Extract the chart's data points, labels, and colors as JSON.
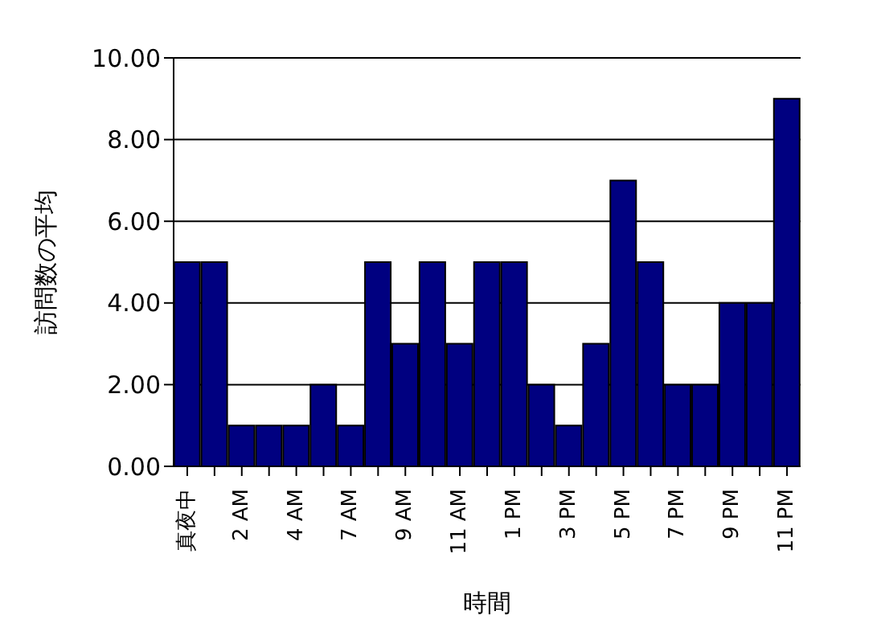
{
  "chart_data": {
    "type": "bar",
    "xlabel": "時間",
    "ylabel": "訪問数の平均",
    "categories": [
      "真夜中",
      null,
      "2 AM",
      null,
      "4 AM",
      null,
      "7 AM",
      null,
      "9 AM",
      null,
      "11 AM",
      null,
      "1 PM",
      null,
      "3 PM",
      null,
      "5 PM",
      null,
      "7 PM",
      null,
      "9 PM",
      null,
      "11 PM"
    ],
    "values": [
      5,
      5,
      1,
      1,
      1,
      2,
      1,
      5,
      3,
      5,
      3,
      5,
      5,
      2,
      1,
      3,
      7,
      5,
      2,
      2,
      4,
      4,
      9
    ],
    "color": "#000080",
    "ylim": [
      0,
      10
    ],
    "yticks": [
      {
        "value": 0,
        "label": "0.00"
      },
      {
        "value": 2,
        "label": "2.00"
      },
      {
        "value": 4,
        "label": "4.00"
      },
      {
        "value": 6,
        "label": "6.00"
      },
      {
        "value": 8,
        "label": "8.00"
      },
      {
        "value": 10,
        "label": "10.00"
      }
    ],
    "grid": "y"
  }
}
